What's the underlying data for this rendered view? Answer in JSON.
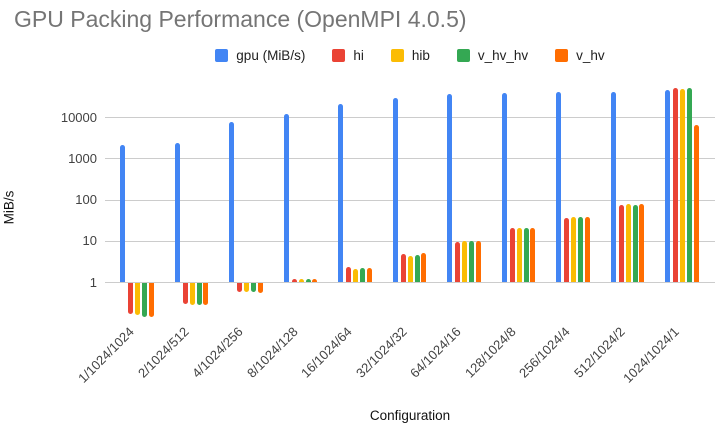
{
  "title": "GPU Packing Performance (OpenMPI 4.0.5)",
  "chart_data": {
    "type": "bar",
    "title": "GPU Packing Performance (OpenMPI 4.0.5)",
    "xlabel": "Configuration",
    "ylabel": "MiB/s",
    "y_scale": "log",
    "y_ticks": [
      10000,
      1000,
      100,
      10,
      1
    ],
    "ylim": [
      0.1,
      60000
    ],
    "grid": true,
    "legend_position": "top",
    "categories": [
      "1/1024/1024",
      "2/1024/512",
      "4/1024/256",
      "8/1024/128",
      "16/1024/64",
      "32/1024/32",
      "64/1024/16",
      "128/1024/8",
      "256/1024/4",
      "512/1024/2",
      "1024/1024/1"
    ],
    "series": [
      {
        "name": "gpu (MiB/s)",
        "color": "#4285F4",
        "values": [
          2100,
          2400,
          7700,
          12000,
          21500,
          30000,
          36000,
          38500,
          42000,
          40000,
          46000
        ]
      },
      {
        "name": "hi",
        "color": "#EA4335",
        "values": [
          0.18,
          0.31,
          0.62,
          1.2,
          2.3,
          4.8,
          9.5,
          21,
          36,
          72,
          52000
        ]
      },
      {
        "name": "hib",
        "color": "#FBBC04",
        "values": [
          0.17,
          0.3,
          0.6,
          1.2,
          2.1,
          4.3,
          9.8,
          20,
          38,
          78,
          48000
        ]
      },
      {
        "name": "v_hv_hv",
        "color": "#34A853",
        "values": [
          0.15,
          0.3,
          0.6,
          1.15,
          2.2,
          4.5,
          10,
          20,
          37,
          75,
          52000
        ]
      },
      {
        "name": "v_hv",
        "color": "#FF6D01",
        "values": [
          0.15,
          0.3,
          0.58,
          1.15,
          2.2,
          5.0,
          10,
          20,
          38,
          78,
          6400
        ]
      }
    ]
  }
}
